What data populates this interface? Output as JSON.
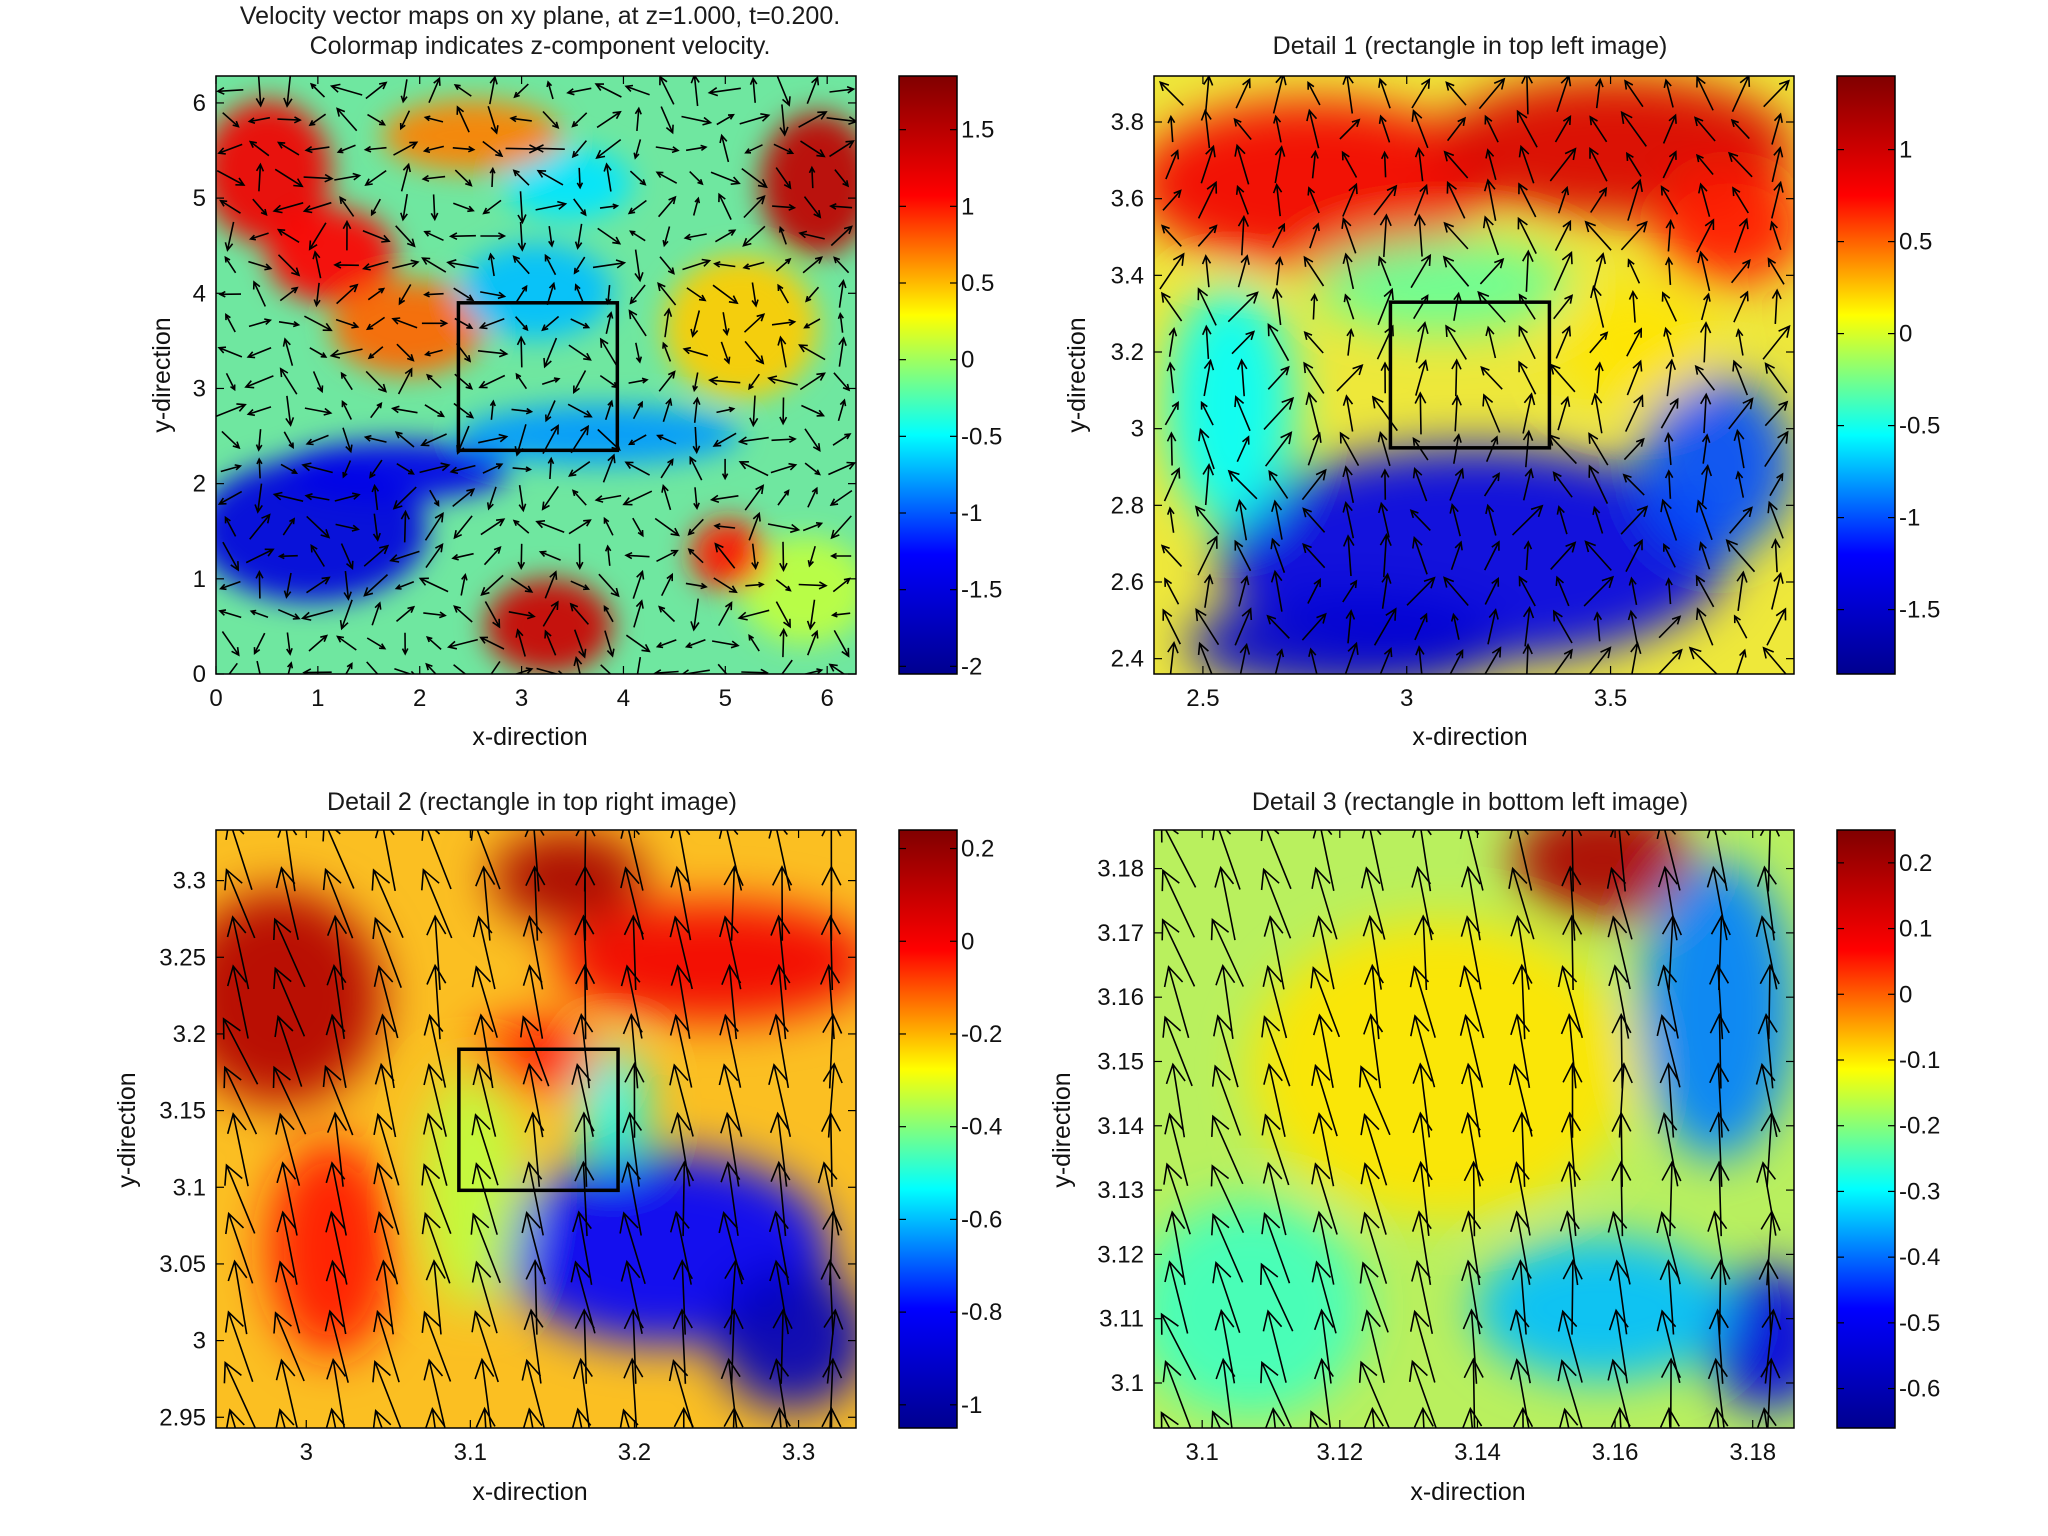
{
  "chart_data": [
    {
      "type": "heatmap",
      "title_lines": [
        "Velocity vector maps on xy plane, at z=1.000, t=0.200.",
        "Colormap indicates z-component velocity."
      ],
      "xlabel": "x-direction",
      "ylabel": "y-direction",
      "xlim": [
        0,
        6.283
      ],
      "ylim": [
        0,
        6.283
      ],
      "xticks": [
        0,
        1,
        2,
        3,
        4,
        5,
        6
      ],
      "yticks": [
        0,
        1,
        2,
        3,
        4,
        5,
        6
      ],
      "tick_labels_x": [
        "0",
        "1",
        "2",
        "3",
        "4",
        "5",
        "6"
      ],
      "tick_labels_y": [
        "0",
        "1",
        "2",
        "3",
        "4",
        "5",
        "6"
      ],
      "clim": [
        -2.05,
        1.85
      ],
      "cticks": [
        -2,
        -1.5,
        -1,
        -0.5,
        0,
        0.5,
        1,
        1.5
      ],
      "ctick_labels": [
        "-2",
        "-1.5",
        "-1",
        "-0.5",
        "0",
        "0.5",
        "1",
        "1.5"
      ],
      "detail_rectangle": {
        "x": [
          2.38,
          3.94
        ],
        "y": [
          2.35,
          3.9
        ]
      },
      "grid": false
    },
    {
      "type": "heatmap",
      "title_lines": [
        "Detail 1 (rectangle in top left image)"
      ],
      "xlabel": "x-direction",
      "ylabel": "y-direction",
      "xlim": [
        2.38,
        3.95
      ],
      "ylim": [
        2.36,
        3.92
      ],
      "xticks": [
        2.5,
        3,
        3.5
      ],
      "yticks": [
        2.4,
        2.6,
        2.8,
        3,
        3.2,
        3.4,
        3.6,
        3.8
      ],
      "tick_labels_x": [
        "2.5",
        "3",
        "3.5"
      ],
      "tick_labels_y": [
        "2.4",
        "2.6",
        "2.8",
        "3",
        "3.2",
        "3.4",
        "3.6",
        "3.8"
      ],
      "clim": [
        -1.85,
        1.4
      ],
      "cticks": [
        -1.5,
        -1,
        -0.5,
        0,
        0.5,
        1
      ],
      "ctick_labels": [
        "-1.5",
        "-1",
        "-0.5",
        "0",
        "0.5",
        "1"
      ],
      "detail_rectangle": {
        "x": [
          2.96,
          3.35
        ],
        "y": [
          2.95,
          3.33
        ]
      },
      "grid": false
    },
    {
      "type": "heatmap",
      "title_lines": [
        "Detail 2 (rectangle in top right image)"
      ],
      "xlabel": "x-direction",
      "ylabel": "y-direction",
      "xlim": [
        2.945,
        3.335
      ],
      "ylim": [
        2.943,
        3.333
      ],
      "xticks": [
        3,
        3.1,
        3.2,
        3.3
      ],
      "yticks": [
        2.95,
        3,
        3.05,
        3.1,
        3.15,
        3.2,
        3.25,
        3.3
      ],
      "tick_labels_x": [
        "3",
        "3.1",
        "3.2",
        "3.3"
      ],
      "tick_labels_y": [
        "2.95",
        "3",
        "3.05",
        "3.1",
        "3.15",
        "3.2",
        "3.25",
        "3.3"
      ],
      "clim": [
        -1.05,
        0.24
      ],
      "cticks": [
        -1,
        -0.8,
        -0.6,
        -0.4,
        -0.2,
        0,
        0.2
      ],
      "ctick_labels": [
        "-1",
        "-0.8",
        "-0.6",
        "-0.4",
        "-0.2",
        "0",
        "0.2"
      ],
      "detail_rectangle": {
        "x": [
          3.093,
          3.19
        ],
        "y": [
          3.098,
          3.19
        ]
      },
      "grid": false
    },
    {
      "type": "heatmap",
      "title_lines": [
        "Detail 3 (rectangle in bottom left image)"
      ],
      "xlabel": "x-direction",
      "ylabel": "y-direction",
      "xlim": [
        3.093,
        3.186
      ],
      "ylim": [
        3.093,
        3.186
      ],
      "xticks": [
        3.1,
        3.12,
        3.14,
        3.16,
        3.18
      ],
      "yticks": [
        3.1,
        3.11,
        3.12,
        3.13,
        3.14,
        3.15,
        3.16,
        3.17,
        3.18
      ],
      "tick_labels_x": [
        "3.1",
        "3.12",
        "3.14",
        "3.16",
        "3.18"
      ],
      "tick_labels_y": [
        "3.1",
        "3.11",
        "3.12",
        "3.13",
        "3.14",
        "3.15",
        "3.16",
        "3.17",
        "3.18"
      ],
      "clim": [
        -0.66,
        0.25
      ],
      "cticks": [
        -0.6,
        -0.5,
        -0.4,
        -0.3,
        -0.2,
        -0.1,
        0,
        0.1,
        0.2
      ],
      "ctick_labels": [
        "-0.6",
        "-0.5",
        "-0.4",
        "-0.3",
        "-0.2",
        "-0.1",
        "0",
        "0.1",
        "0.2"
      ],
      "grid": false
    }
  ],
  "colors": {
    "colormap": "jet",
    "jet_stops": [
      "#00008f",
      "#0000ff",
      "#00ffff",
      "#ffff00",
      "#ff0000",
      "#800000"
    ],
    "axis": "#000000",
    "arrows": "#000000",
    "background": "#ffffff"
  }
}
